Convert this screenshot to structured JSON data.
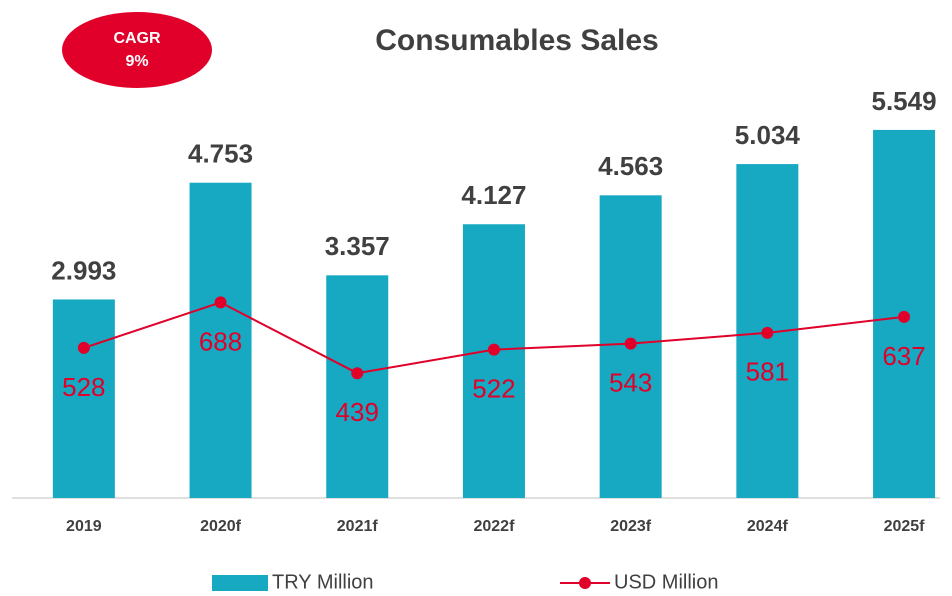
{
  "chart_data": {
    "type": "bar_line",
    "title": "Consumables Sales",
    "annotations": [
      "CAGR",
      "9%"
    ],
    "categories": [
      "2019",
      "2020f",
      "2021f",
      "2022f",
      "2023f",
      "2024f",
      "2025f"
    ],
    "series": [
      {
        "name": "TRY Million",
        "type": "bar",
        "color": "#17a9c1",
        "values": [
          2993,
          4753,
          3357,
          4127,
          4563,
          5034,
          5549
        ],
        "value_labels": [
          "2.993",
          "4.753",
          "3.357",
          "4.127",
          "4.563",
          "5.034",
          "5.549"
        ]
      },
      {
        "name": "USD Million",
        "type": "line",
        "axis": "y2",
        "color": "#e0002a",
        "values": [
          528,
          688,
          439,
          522,
          543,
          581,
          637
        ]
      }
    ],
    "ylim": [
      0,
      6000
    ],
    "y2lim": [
      0,
      1400
    ],
    "legend": "bottom"
  }
}
